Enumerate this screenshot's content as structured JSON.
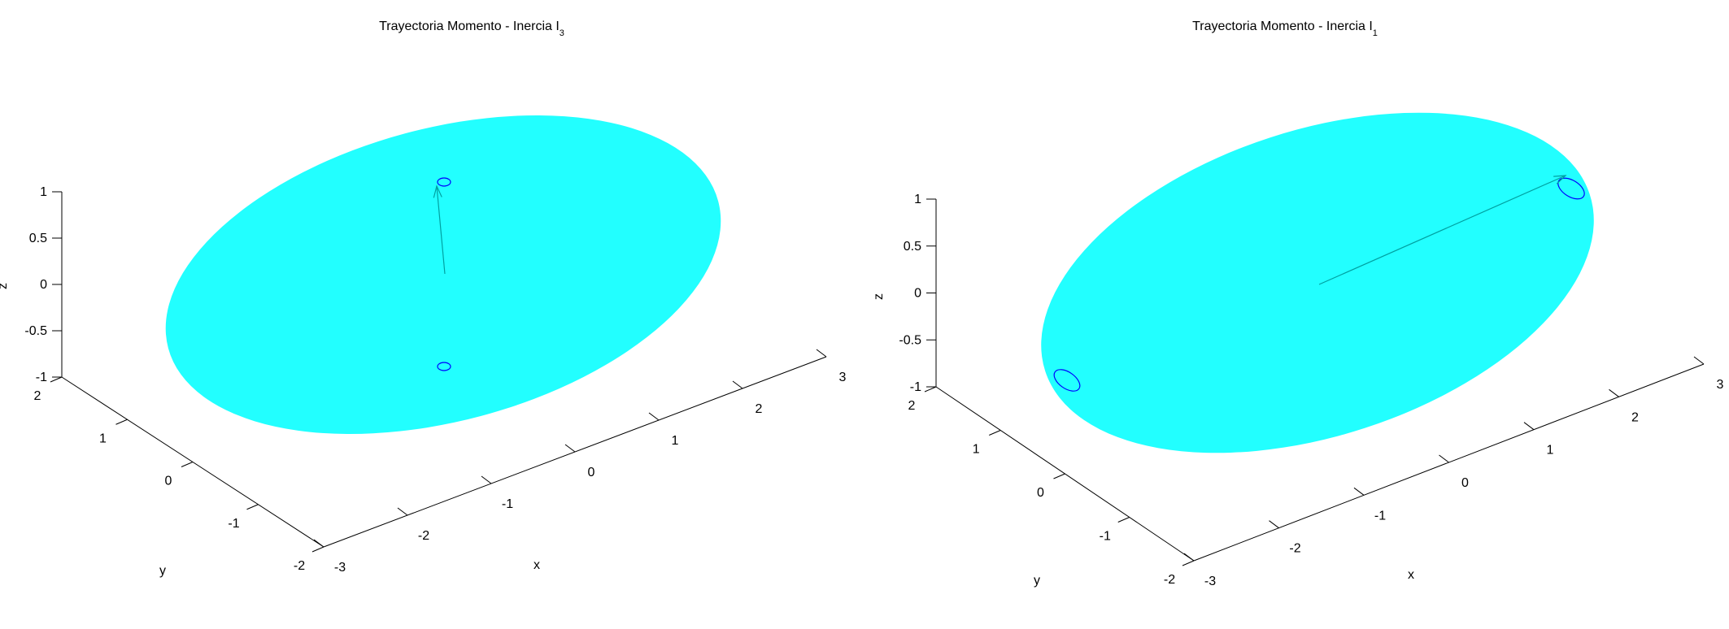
{
  "chart_data": [
    {
      "type": "3d-surface",
      "title": "Trayectoria Momento - Inercia I",
      "title_subscript": "3",
      "xlabel": "x",
      "ylabel": "y",
      "zlabel": "z",
      "xlim": [
        -3,
        3
      ],
      "ylim": [
        -2,
        2
      ],
      "zlim": [
        -1,
        1
      ],
      "x_ticks": [
        "-3",
        "-2",
        "-1",
        "0",
        "1",
        "2",
        "3"
      ],
      "y_ticks": [
        "-2",
        "-1",
        "0",
        "1",
        "2"
      ],
      "z_ticks": [
        "-1",
        "-0.5",
        "0",
        "0.5",
        "1"
      ],
      "surface": {
        "shape": "ellipsoid",
        "color": "#22ffff"
      },
      "series": [
        {
          "shape": "loop",
          "color": "#0000ff",
          "center": [
            0,
            0,
            1
          ]
        },
        {
          "shape": "loop",
          "color": "#0000ff",
          "center": [
            0,
            0,
            -1
          ]
        },
        {
          "shape": "vector",
          "color": "#00a0a0",
          "from": [
            0,
            0,
            0
          ],
          "to": [
            0,
            0,
            1
          ]
        }
      ]
    },
    {
      "type": "3d-surface",
      "title": "Trayectoria Momento - Inercia I",
      "title_subscript": "1",
      "xlabel": "x",
      "ylabel": "y",
      "zlabel": "z",
      "xlim": [
        -3,
        3
      ],
      "ylim": [
        -2,
        2
      ],
      "zlim": [
        -1,
        1
      ],
      "x_ticks": [
        "-3",
        "-2",
        "-1",
        "0",
        "1",
        "2",
        "3"
      ],
      "y_ticks": [
        "-2",
        "-1",
        "0",
        "1",
        "2"
      ],
      "z_ticks": [
        "-1",
        "-0.5",
        "0",
        "0.5",
        "1"
      ],
      "surface": {
        "shape": "ellipsoid",
        "color": "#22ffff"
      },
      "series": [
        {
          "shape": "loop",
          "color": "#0000ff",
          "center": [
            3,
            0,
            0
          ]
        },
        {
          "shape": "loop",
          "color": "#0000ff",
          "center": [
            -3,
            0,
            0
          ]
        },
        {
          "shape": "vector",
          "color": "#00a0a0",
          "from": [
            0,
            0,
            0
          ],
          "to": [
            3,
            0,
            0
          ]
        }
      ]
    }
  ]
}
